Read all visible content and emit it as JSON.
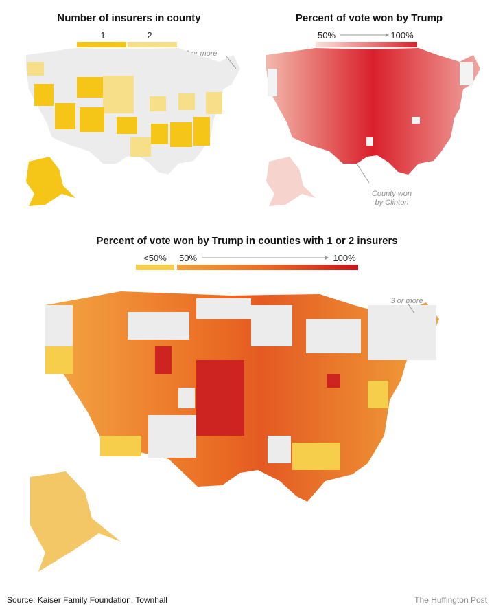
{
  "map1": {
    "title": "Number of insurers in county",
    "legend": [
      {
        "label": "1",
        "color": "#f5c518"
      },
      {
        "label": "2",
        "color": "#f7df8a"
      }
    ],
    "note": "3 or more insurers",
    "colors": {
      "one": "#f5c518",
      "two": "#f7df8a",
      "three_plus": "#ececec"
    }
  },
  "map2": {
    "title": "Percent of vote won by Trump",
    "legend_low": "50%",
    "legend_high": "100%",
    "note": "County won by Clinton",
    "colors": {
      "low": "#fbe3dd",
      "high": "#d9202a",
      "clinton": "#f3f3f3"
    }
  },
  "map3": {
    "title": "Percent of vote won by Trump in counties with 1 or 2 insurers",
    "legend_under": "<50%",
    "legend_low": "50%",
    "legend_high": "100%",
    "note": "3 or more insurers",
    "colors": {
      "under50": "#f7cd4c",
      "low": "#f2a13a",
      "mid": "#ea6a23",
      "high": "#c8141c",
      "three_plus": "#ececec"
    }
  },
  "footer": {
    "source": "Source: Kaiser Family Foundation, Townhall",
    "credit": "The Huffington Post"
  }
}
